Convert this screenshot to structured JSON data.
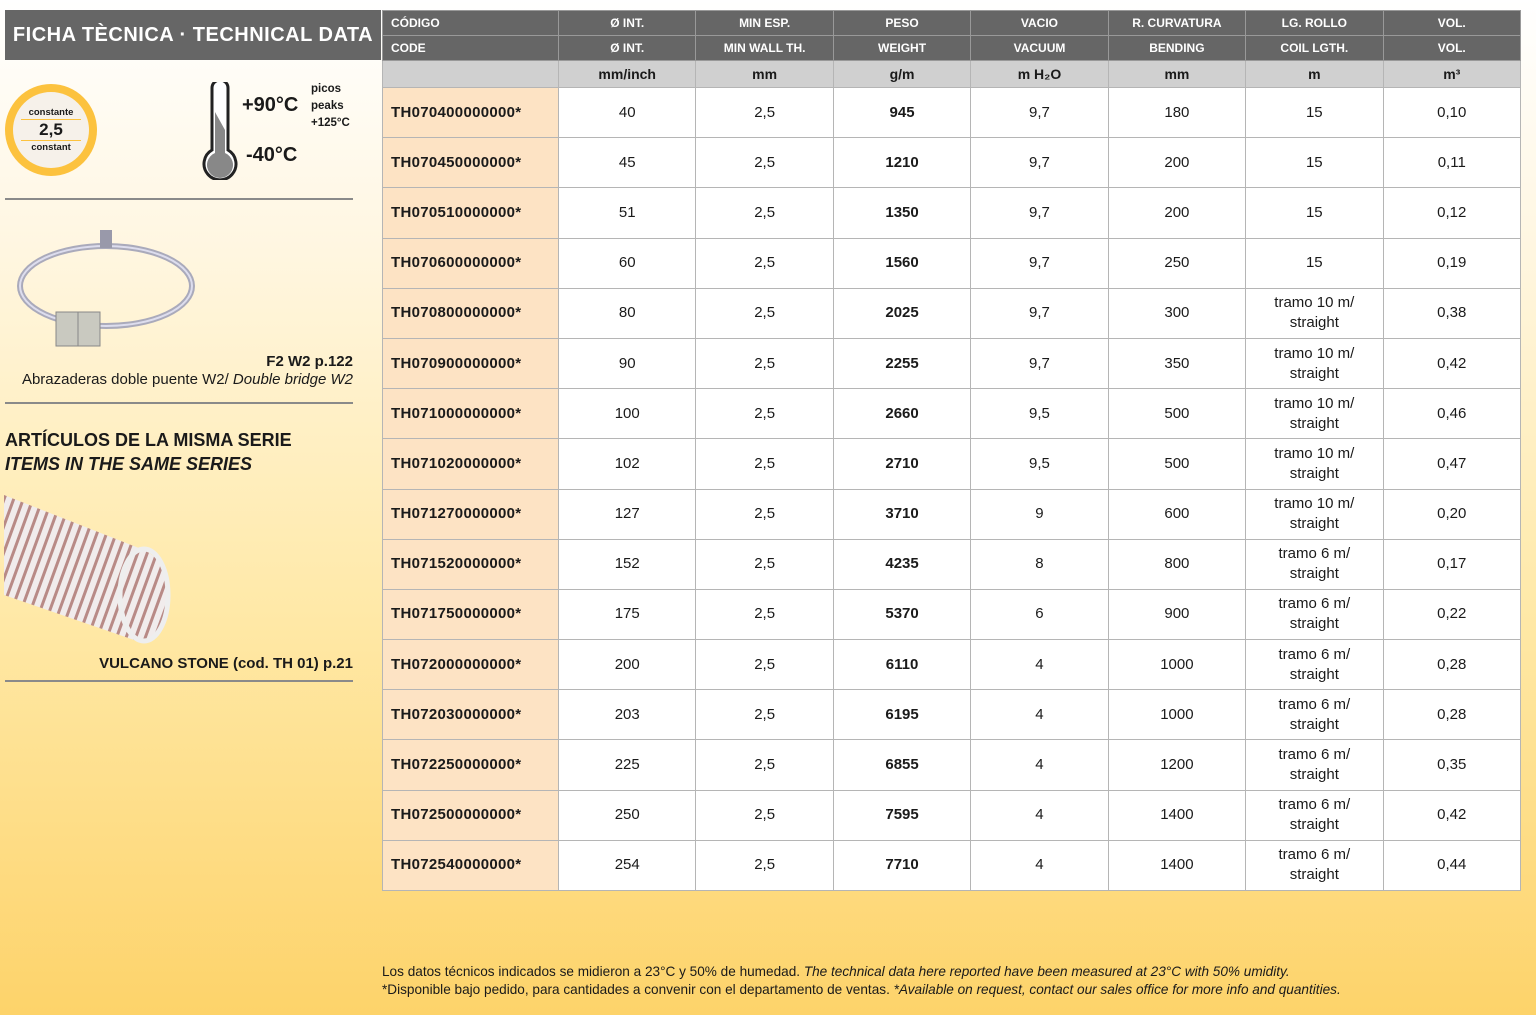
{
  "title": "FICHA TÈCNICA · TECHNICAL DATA",
  "badge": {
    "top": "constante",
    "value": "2,5",
    "bottom": "constant"
  },
  "temperature": {
    "max": "+90°C",
    "min": "-40°C",
    "peaks_es": "picos",
    "peaks_en": "peaks",
    "peaks_value": "+125°C"
  },
  "accessory": {
    "ref": "F2 W2 p.122",
    "desc_es": "Abrazaderas doble puente W2/ ",
    "desc_en": "Double bridge W2"
  },
  "series": {
    "title_es": "ARTÍCULOS DE LA MISMA SERIE",
    "title_en": "ITEMS IN THE SAME SERIES",
    "item": "VULCANO STONE (cod. TH 01) p.21"
  },
  "table": {
    "headers_es": [
      "CÓDIGO",
      "Ø INT.",
      "MIN ESP.",
      "PESO",
      "VACIO",
      "R. CURVATURA",
      "LG. ROLLO",
      "VOL."
    ],
    "headers_en": [
      "CODE",
      "Ø INT.",
      "MIN WALL TH.",
      "WEIGHT",
      "VACUUM",
      "BENDING",
      "COIL LGTH.",
      "VOL."
    ],
    "units": [
      "",
      "mm/inch",
      "mm",
      "g/m",
      "m H₂O",
      "mm",
      "m",
      "m³"
    ],
    "rows": [
      [
        "TH070400000000*",
        "40",
        "2,5",
        "945",
        "9,7",
        "180",
        "15",
        "0,10"
      ],
      [
        "TH070450000000*",
        "45",
        "2,5",
        "1210",
        "9,7",
        "200",
        "15",
        "0,11"
      ],
      [
        "TH070510000000*",
        "51",
        "2,5",
        "1350",
        "9,7",
        "200",
        "15",
        "0,12"
      ],
      [
        "TH070600000000*",
        "60",
        "2,5",
        "1560",
        "9,7",
        "250",
        "15",
        "0,19"
      ],
      [
        "TH070800000000*",
        "80",
        "2,5",
        "2025",
        "9,7",
        "300",
        "tramo 10 m/\nstraight",
        "0,38"
      ],
      [
        "TH070900000000*",
        "90",
        "2,5",
        "2255",
        "9,7",
        "350",
        "tramo 10 m/\nstraight",
        "0,42"
      ],
      [
        "TH071000000000*",
        "100",
        "2,5",
        "2660",
        "9,5",
        "500",
        "tramo 10 m/\nstraight",
        "0,46"
      ],
      [
        "TH071020000000*",
        "102",
        "2,5",
        "2710",
        "9,5",
        "500",
        "tramo 10 m/\nstraight",
        "0,47"
      ],
      [
        "TH071270000000*",
        "127",
        "2,5",
        "3710",
        "9",
        "600",
        "tramo 10 m/\nstraight",
        "0,20"
      ],
      [
        "TH071520000000*",
        "152",
        "2,5",
        "4235",
        "8",
        "800",
        "tramo 6 m/\nstraight",
        "0,17"
      ],
      [
        "TH071750000000*",
        "175",
        "2,5",
        "5370",
        "6",
        "900",
        "tramo 6 m/\nstraight",
        "0,22"
      ],
      [
        "TH072000000000*",
        "200",
        "2,5",
        "6110",
        "4",
        "1000",
        "tramo 6 m/\nstraight",
        "0,28"
      ],
      [
        "TH072030000000*",
        "203",
        "2,5",
        "6195",
        "4",
        "1000",
        "tramo 6 m/\nstraight",
        "0,28"
      ],
      [
        "TH072250000000*",
        "225",
        "2,5",
        "6855",
        "4",
        "1200",
        "tramo 6 m/\nstraight",
        "0,35"
      ],
      [
        "TH072500000000*",
        "250",
        "2,5",
        "7595",
        "4",
        "1400",
        "tramo 6 m/\nstraight",
        "0,42"
      ],
      [
        "TH072540000000*",
        "254",
        "2,5",
        "7710",
        "4",
        "1400",
        "tramo 6 m/\nstraight",
        "0,44"
      ]
    ]
  },
  "footer": {
    "line1_es": "Los datos técnicos indicados se midieron a 23°C y 50% de humedad. ",
    "line1_en": "The technical data here reported have been measured at 23°C with 50% umidity.",
    "line2_es": "*Disponible bajo pedido, para cantidades a convenir con el departamento de ventas. ",
    "line2_en": "*Available on request, contact our sales office for more info and quantities."
  },
  "colors": {
    "header": "#666666",
    "units": "#d0d0d0",
    "code_cell": "#fde3c4",
    "badge": "#fcc23e",
    "background_bottom": "#fdd36a"
  }
}
